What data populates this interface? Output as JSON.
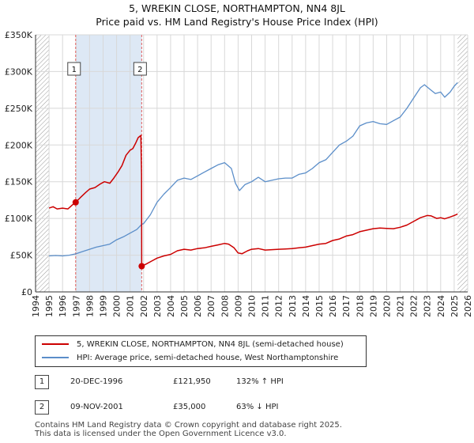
{
  "title_line1": "5, WREKIN CLOSE, NORTHAMPTON, NN4 8JL",
  "title_line2": "Price paid vs. HM Land Registry's House Price Index (HPI)",
  "legend": {
    "property": "5, WREKIN CLOSE, NORTHAMPTON, NN4 8JL (semi-detached house)",
    "hpi": "HPI: Average price, semi-detached house, West Northamptonshire"
  },
  "annotations": [
    {
      "id": "1",
      "date": "20-DEC-1996",
      "price": "£121,950",
      "hpi": "132% ↑ HPI"
    },
    {
      "id": "2",
      "date": "09-NOV-2001",
      "price": "£35,000",
      "hpi": "63% ↓ HPI"
    }
  ],
  "footer": {
    "line1": "Contains HM Land Registry data © Crown copyright and database right 2025.",
    "line2": "This data is licensed under the Open Government Licence v3.0."
  },
  "colors": {
    "property": "#cc0000",
    "hpi": "#5b8ec9",
    "grid": "#d8d8d8",
    "shade": "#dde8f5",
    "hatch": "#9a9a9a",
    "vline": "#e06060"
  },
  "chart_data": {
    "type": "line",
    "xlim": [
      1994,
      2026
    ],
    "ylim": [
      0,
      350000
    ],
    "x_ticks": [
      1994,
      1995,
      1996,
      1997,
      1998,
      1999,
      2000,
      2001,
      2002,
      2003,
      2004,
      2005,
      2006,
      2007,
      2008,
      2009,
      2010,
      2011,
      2012,
      2013,
      2014,
      2015,
      2016,
      2017,
      2018,
      2019,
      2020,
      2021,
      2022,
      2023,
      2024,
      2025,
      2026
    ],
    "y_ticks": [
      0,
      50000,
      100000,
      150000,
      200000,
      250000,
      300000,
      350000
    ],
    "y_tick_labels": [
      "£0",
      "£50K",
      "£100K",
      "£150K",
      "£200K",
      "£250K",
      "£300K",
      "£350K"
    ],
    "data_start": 1995.0,
    "data_end": 2025.25,
    "shaded_range": [
      1996.97,
      2001.86
    ],
    "sales": [
      {
        "label": "1",
        "x": 1996.97,
        "y": 121950
      },
      {
        "label": "2",
        "x": 2001.86,
        "y": 35000
      }
    ],
    "series": [
      {
        "name": "5, WREKIN CLOSE, NORTHAMPTON, NN4 8JL (semi-detached house)",
        "points": [
          [
            1995.0,
            114000
          ],
          [
            1995.3,
            116000
          ],
          [
            1995.6,
            113000
          ],
          [
            1996.0,
            114000
          ],
          [
            1996.4,
            113000
          ],
          [
            1996.7,
            118000
          ],
          [
            1996.97,
            121950
          ],
          [
            1997.3,
            128000
          ],
          [
            1997.7,
            135000
          ],
          [
            1998.0,
            140000
          ],
          [
            1998.4,
            142000
          ],
          [
            1998.8,
            147000
          ],
          [
            1999.1,
            150000
          ],
          [
            1999.5,
            148000
          ],
          [
            1999.8,
            155000
          ],
          [
            2000.1,
            163000
          ],
          [
            2000.4,
            172000
          ],
          [
            2000.7,
            186000
          ],
          [
            2001.0,
            193000
          ],
          [
            2001.2,
            195000
          ],
          [
            2001.4,
            202000
          ],
          [
            2001.6,
            210000
          ],
          [
            2001.8,
            213000
          ],
          [
            2001.85,
            160000
          ],
          [
            2001.86,
            35000
          ],
          [
            2002.2,
            38000
          ],
          [
            2002.6,
            42000
          ],
          [
            2003.0,
            46000
          ],
          [
            2003.5,
            49000
          ],
          [
            2004.0,
            51000
          ],
          [
            2004.5,
            56000
          ],
          [
            2005.0,
            58000
          ],
          [
            2005.5,
            57000
          ],
          [
            2006.0,
            59000
          ],
          [
            2006.5,
            60000
          ],
          [
            2007.0,
            62000
          ],
          [
            2007.5,
            64000
          ],
          [
            2008.0,
            66000
          ],
          [
            2008.3,
            65000
          ],
          [
            2008.7,
            60000
          ],
          [
            2009.0,
            53000
          ],
          [
            2009.3,
            52000
          ],
          [
            2009.7,
            56000
          ],
          [
            2010.0,
            58000
          ],
          [
            2010.5,
            59000
          ],
          [
            2011.0,
            57000
          ],
          [
            2011.5,
            57500
          ],
          [
            2012.0,
            58000
          ],
          [
            2012.5,
            58500
          ],
          [
            2013.0,
            59000
          ],
          [
            2013.5,
            60000
          ],
          [
            2014.0,
            61000
          ],
          [
            2014.5,
            63000
          ],
          [
            2015.0,
            65000
          ],
          [
            2015.5,
            66000
          ],
          [
            2016.0,
            70000
          ],
          [
            2016.5,
            72000
          ],
          [
            2017.0,
            76000
          ],
          [
            2017.5,
            78000
          ],
          [
            2018.0,
            82000
          ],
          [
            2018.5,
            84000
          ],
          [
            2019.0,
            86000
          ],
          [
            2019.5,
            87000
          ],
          [
            2020.0,
            86500
          ],
          [
            2020.5,
            86000
          ],
          [
            2021.0,
            88000
          ],
          [
            2021.5,
            91000
          ],
          [
            2022.0,
            96000
          ],
          [
            2022.5,
            101000
          ],
          [
            2023.0,
            104000
          ],
          [
            2023.3,
            103500
          ],
          [
            2023.7,
            100000
          ],
          [
            2024.0,
            101000
          ],
          [
            2024.3,
            99500
          ],
          [
            2024.7,
            102000
          ],
          [
            2025.0,
            104000
          ],
          [
            2025.25,
            106000
          ]
        ]
      },
      {
        "name": "HPI: Average price, semi-detached house, West Northamptonshire",
        "points": [
          [
            1995.0,
            49000
          ],
          [
            1995.5,
            49500
          ],
          [
            1996.0,
            49000
          ],
          [
            1996.5,
            50000
          ],
          [
            1997.0,
            52000
          ],
          [
            1997.5,
            55000
          ],
          [
            1998.0,
            58000
          ],
          [
            1998.5,
            61000
          ],
          [
            1999.0,
            63000
          ],
          [
            1999.5,
            65000
          ],
          [
            2000.0,
            71000
          ],
          [
            2000.5,
            75000
          ],
          [
            2001.0,
            80000
          ],
          [
            2001.5,
            85000
          ],
          [
            2001.86,
            92000
          ],
          [
            2002.0,
            93000
          ],
          [
            2002.5,
            105000
          ],
          [
            2003.0,
            122000
          ],
          [
            2003.5,
            133000
          ],
          [
            2004.0,
            142000
          ],
          [
            2004.5,
            152000
          ],
          [
            2005.0,
            155000
          ],
          [
            2005.5,
            153000
          ],
          [
            2006.0,
            158000
          ],
          [
            2006.5,
            163000
          ],
          [
            2007.0,
            168000
          ],
          [
            2007.5,
            173000
          ],
          [
            2008.0,
            176000
          ],
          [
            2008.5,
            168000
          ],
          [
            2008.8,
            148000
          ],
          [
            2009.1,
            138000
          ],
          [
            2009.5,
            146000
          ],
          [
            2010.0,
            150000
          ],
          [
            2010.5,
            156000
          ],
          [
            2011.0,
            150000
          ],
          [
            2011.5,
            152000
          ],
          [
            2012.0,
            154000
          ],
          [
            2012.5,
            155000
          ],
          [
            2013.0,
            155000
          ],
          [
            2013.5,
            160000
          ],
          [
            2014.0,
            162000
          ],
          [
            2014.5,
            168000
          ],
          [
            2015.0,
            176000
          ],
          [
            2015.5,
            180000
          ],
          [
            2016.0,
            190000
          ],
          [
            2016.5,
            200000
          ],
          [
            2017.0,
            205000
          ],
          [
            2017.5,
            212000
          ],
          [
            2018.0,
            226000
          ],
          [
            2018.5,
            230000
          ],
          [
            2019.0,
            232000
          ],
          [
            2019.5,
            229000
          ],
          [
            2020.0,
            228000
          ],
          [
            2020.5,
            233000
          ],
          [
            2021.0,
            238000
          ],
          [
            2021.5,
            250000
          ],
          [
            2022.0,
            264000
          ],
          [
            2022.5,
            278000
          ],
          [
            2022.8,
            282000
          ],
          [
            2023.2,
            276000
          ],
          [
            2023.6,
            270000
          ],
          [
            2024.0,
            272000
          ],
          [
            2024.3,
            265000
          ],
          [
            2024.7,
            272000
          ],
          [
            2025.0,
            280000
          ],
          [
            2025.25,
            285000
          ]
        ]
      }
    ]
  }
}
